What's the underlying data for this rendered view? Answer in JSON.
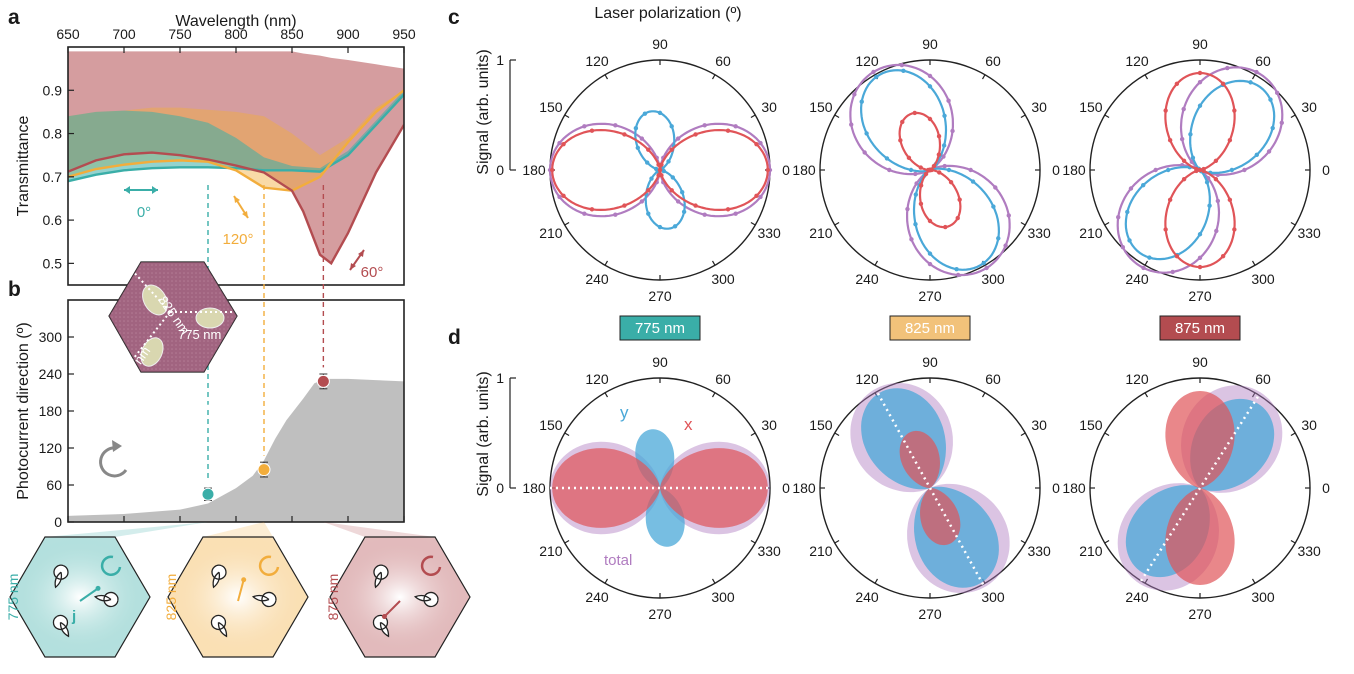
{
  "panels": {
    "a": "a",
    "b": "b",
    "c": "c",
    "d": "d"
  },
  "chart_data": [
    {
      "id": "a",
      "type": "area",
      "xlabel": "Wavelength (nm)",
      "ylabel": "Transmittance",
      "xlim": [
        650,
        950
      ],
      "ylim": [
        0.45,
        1.0
      ],
      "xticks": [
        650,
        700,
        750,
        800,
        850,
        900,
        950
      ],
      "yticks": [
        0.5,
        0.6,
        0.7,
        0.8,
        0.9
      ],
      "series": [
        {
          "name": "0°",
          "color": "#3aaea8",
          "x": [
            650,
            675,
            700,
            725,
            750,
            775,
            800,
            825,
            850,
            875,
            900,
            925,
            950
          ],
          "values": [
            0.69,
            0.705,
            0.715,
            0.72,
            0.722,
            0.722,
            0.72,
            0.715,
            0.715,
            0.712,
            0.75,
            0.82,
            0.89
          ],
          "band_upper": [
            0.84,
            0.85,
            0.853,
            0.85,
            0.84,
            0.825,
            0.79,
            0.745,
            0.725,
            0.72,
            0.76,
            0.83,
            0.9
          ]
        },
        {
          "name": "120°",
          "color": "#f2ad3c",
          "x": [
            650,
            675,
            700,
            725,
            750,
            775,
            800,
            825,
            850,
            875,
            900,
            925,
            950
          ],
          "values": [
            0.7,
            0.718,
            0.728,
            0.735,
            0.738,
            0.735,
            0.715,
            0.675,
            0.668,
            0.7,
            0.78,
            0.85,
            0.9
          ],
          "band_upper": [
            0.84,
            0.85,
            0.853,
            0.86,
            0.86,
            0.855,
            0.85,
            0.84,
            0.8,
            0.75,
            0.79,
            0.86,
            0.9
          ]
        },
        {
          "name": "60°",
          "color": "#b34c50",
          "x": [
            650,
            675,
            700,
            725,
            750,
            775,
            800,
            825,
            850,
            860,
            875,
            885,
            900,
            925,
            950
          ],
          "values": [
            0.712,
            0.738,
            0.752,
            0.756,
            0.75,
            0.74,
            0.726,
            0.71,
            0.668,
            0.62,
            0.52,
            0.5,
            0.57,
            0.71,
            0.82
          ],
          "band_upper": [
            0.99,
            0.99,
            0.99,
            0.99,
            0.99,
            0.99,
            0.99,
            0.99,
            0.99,
            0.985,
            0.98,
            0.975,
            0.97,
            0.96,
            0.95
          ]
        }
      ],
      "annotations": [
        "0°",
        "120°",
        "60°"
      ]
    },
    {
      "id": "b",
      "type": "area",
      "xlabel": "",
      "ylabel": "Photocurrent direction (º)",
      "xlim": [
        650,
        950
      ],
      "ylim": [
        0,
        360
      ],
      "yticks": [
        0,
        60,
        120,
        180,
        240,
        300
      ],
      "shaded_x": [
        650,
        700,
        750,
        775,
        800,
        815,
        825,
        835,
        845,
        860,
        870,
        880,
        900,
        925,
        950
      ],
      "shaded_y": [
        10,
        13,
        20,
        30,
        55,
        75,
        100,
        135,
        165,
        200,
        225,
        232,
        232,
        230,
        228
      ],
      "points": [
        {
          "x": 775,
          "y": 45,
          "err": 10,
          "color": "#3aaea8"
        },
        {
          "x": 825,
          "y": 85,
          "err": 12,
          "color": "#f2ad3c"
        },
        {
          "x": 878,
          "y": 228,
          "err": 12,
          "color": "#b34c50"
        }
      ],
      "inset_labels": [
        "825 nm",
        "775 nm",
        "875 nm"
      ]
    },
    {
      "id": "c",
      "type": "polar-line",
      "title": "Laser polarization (º)",
      "ylabel": "Signal (arb. units)",
      "yticks": [
        0,
        1
      ],
      "angle_ticks": [
        0,
        30,
        60,
        90,
        120,
        150,
        180,
        210,
        240,
        270,
        300,
        330
      ]
    },
    {
      "id": "d",
      "type": "polar-area",
      "ylabel": "Signal (arb. units)",
      "yticks": [
        0,
        1
      ],
      "angle_ticks": [
        0,
        30,
        60,
        90,
        120,
        150,
        180,
        210,
        240,
        270,
        300,
        330
      ],
      "series_names": [
        "x",
        "y",
        "total"
      ],
      "wavelength_labels": [
        {
          "text": "775 nm",
          "color": "#3aaea8"
        },
        {
          "text": "825 nm",
          "color": "#f2c27a"
        },
        {
          "text": "875 nm",
          "color": "#b34c50"
        }
      ]
    }
  ],
  "bottom_maps": [
    {
      "label": "775 nm",
      "color": "#3aaea8",
      "arrow_label": "j"
    },
    {
      "label": "825 nm",
      "color": "#f2ad3c"
    },
    {
      "label": "875 nm",
      "color": "#b34c50"
    }
  ]
}
